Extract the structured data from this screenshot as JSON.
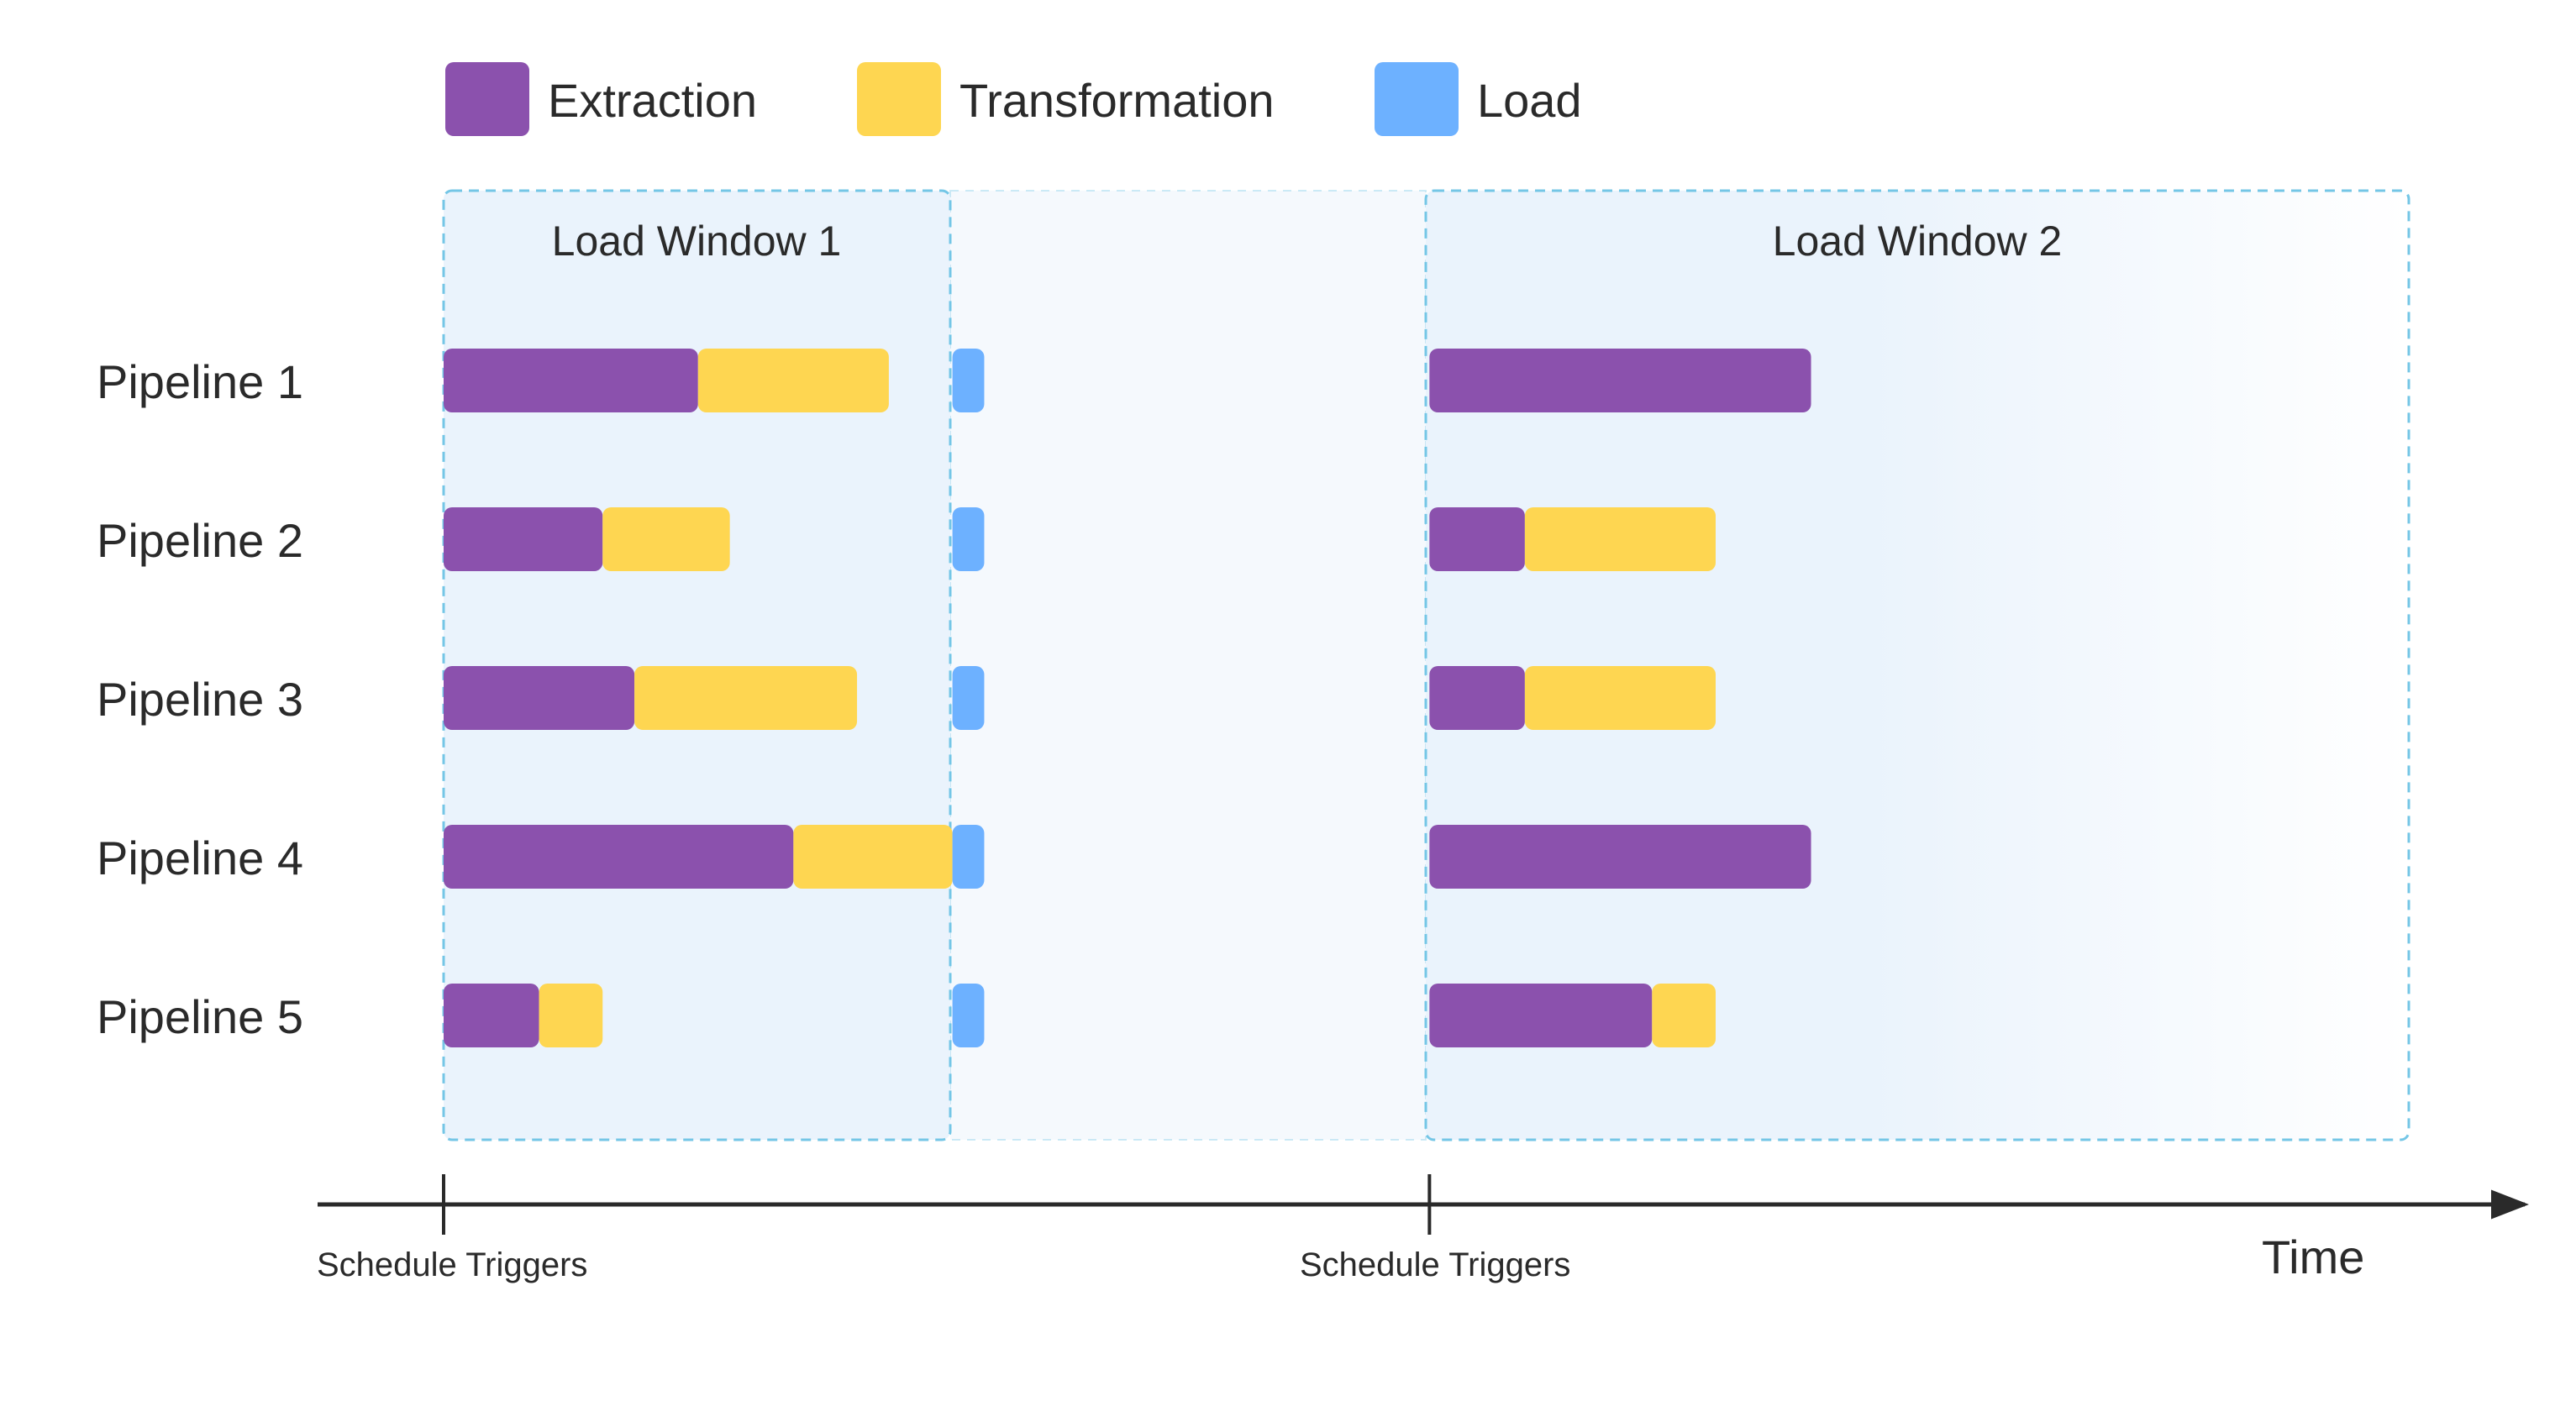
{
  "colors": {
    "extraction": "#8b51ad",
    "transformation": "#fed651",
    "load": "#6db1ff",
    "window_border": "#74c6e6",
    "window_fill": "#eaf3fc",
    "gap_fill": "#f5f9fd",
    "axis": "#2a2a2a"
  },
  "legend": [
    {
      "key": "extraction",
      "label": "Extraction"
    },
    {
      "key": "transformation",
      "label": "Transformation"
    },
    {
      "key": "load",
      "label": "Load"
    }
  ],
  "windows": [
    {
      "title": "Load Window 1"
    },
    {
      "title": "Load Window 2"
    }
  ],
  "timeline": {
    "axis_label": "Time",
    "triggers": [
      {
        "label": "Schedule Triggers"
      },
      {
        "label": "Schedule Triggers"
      }
    ]
  },
  "pipelines": [
    {
      "name": "Pipeline 1",
      "segments": [
        {
          "phase": "extraction",
          "start": 0,
          "end": 8
        },
        {
          "phase": "transformation",
          "start": 8,
          "end": 14
        },
        {
          "phase": "load",
          "start": 16,
          "end": 17
        },
        {
          "phase": "extraction",
          "start": 31,
          "end": 43
        }
      ]
    },
    {
      "name": "Pipeline 2",
      "segments": [
        {
          "phase": "extraction",
          "start": 0,
          "end": 5
        },
        {
          "phase": "transformation",
          "start": 5,
          "end": 9
        },
        {
          "phase": "load",
          "start": 16,
          "end": 17
        },
        {
          "phase": "extraction",
          "start": 31,
          "end": 34
        },
        {
          "phase": "transformation",
          "start": 34,
          "end": 40
        }
      ]
    },
    {
      "name": "Pipeline 3",
      "segments": [
        {
          "phase": "extraction",
          "start": 0,
          "end": 6
        },
        {
          "phase": "transformation",
          "start": 6,
          "end": 13
        },
        {
          "phase": "load",
          "start": 16,
          "end": 17
        },
        {
          "phase": "extraction",
          "start": 31,
          "end": 34
        },
        {
          "phase": "transformation",
          "start": 34,
          "end": 40
        }
      ]
    },
    {
      "name": "Pipeline 4",
      "segments": [
        {
          "phase": "extraction",
          "start": 0,
          "end": 11
        },
        {
          "phase": "transformation",
          "start": 11,
          "end": 16
        },
        {
          "phase": "load",
          "start": 16,
          "end": 17
        },
        {
          "phase": "extraction",
          "start": 31,
          "end": 43
        }
      ]
    },
    {
      "name": "Pipeline 5",
      "segments": [
        {
          "phase": "extraction",
          "start": 0,
          "end": 3
        },
        {
          "phase": "transformation",
          "start": 3,
          "end": 5
        },
        {
          "phase": "load",
          "start": 16,
          "end": 17
        },
        {
          "phase": "extraction",
          "start": 31,
          "end": 38
        },
        {
          "phase": "transformation",
          "start": 38,
          "end": 40
        }
      ]
    }
  ],
  "window_spans": [
    {
      "start": 0,
      "end": 16
    },
    {
      "start": 31,
      "end": 62
    }
  ],
  "trigger_times": [
    0,
    31
  ]
}
